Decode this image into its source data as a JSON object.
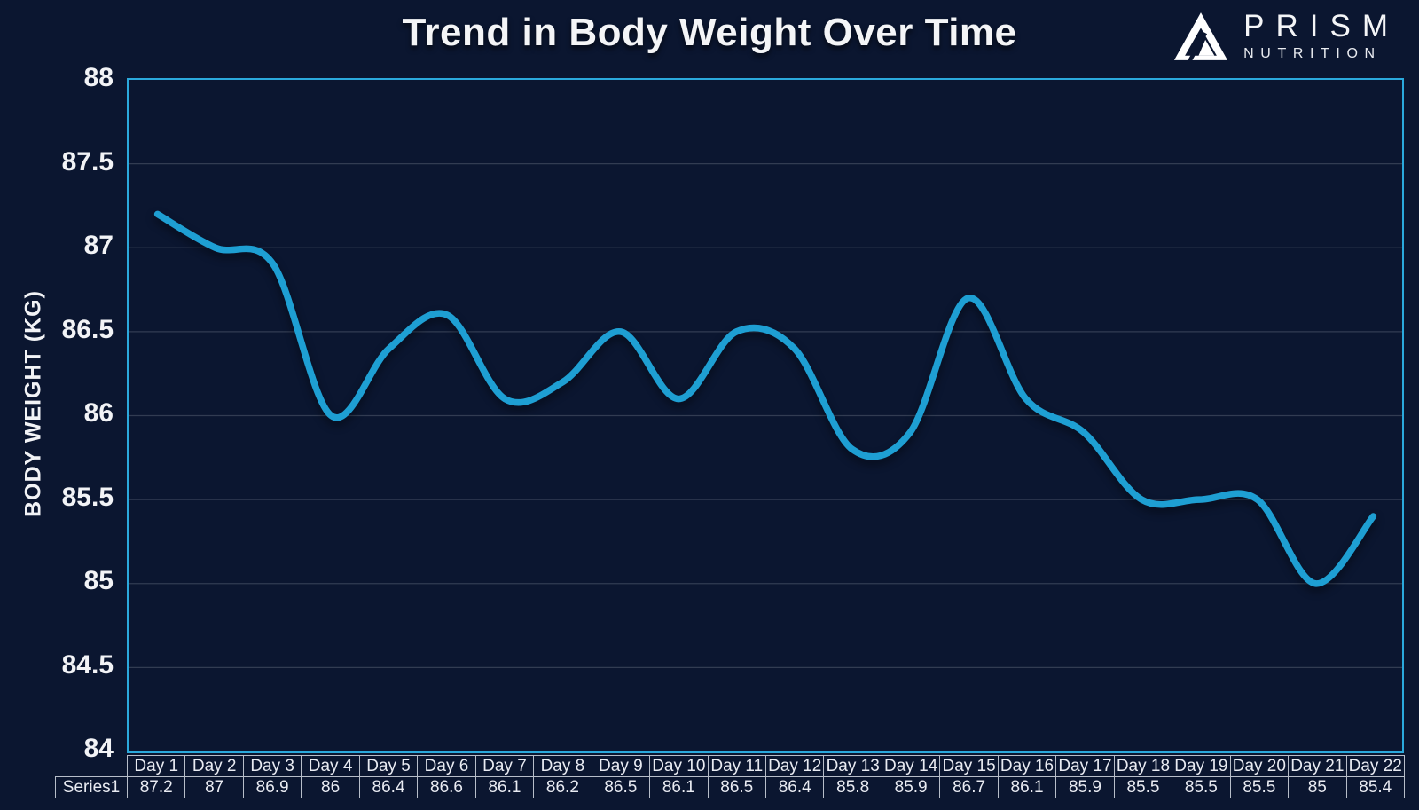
{
  "title": "Trend in Body Weight Over Time",
  "logo": {
    "brand": "PRISM",
    "sub": "NUTRITION"
  },
  "chart_data": {
    "type": "line",
    "title": "Trend in Body Weight Over Time",
    "xlabel": "",
    "ylabel": "BODY WEIGHT (KG)",
    "categories": [
      "Day 1",
      "Day 2",
      "Day 3",
      "Day 4",
      "Day 5",
      "Day 6",
      "Day 7",
      "Day 8",
      "Day 9",
      "Day 10",
      "Day 11",
      "Day 12",
      "Day 13",
      "Day 14",
      "Day 15",
      "Day 16",
      "Day 17",
      "Day 18",
      "Day 19",
      "Day 20",
      "Day 21",
      "Day 22"
    ],
    "series": [
      {
        "name": "Series1",
        "values": [
          87.2,
          87,
          86.9,
          86,
          86.4,
          86.6,
          86.1,
          86.2,
          86.5,
          86.1,
          86.5,
          86.4,
          85.8,
          85.9,
          86.7,
          86.1,
          85.9,
          85.5,
          85.5,
          85.5,
          85,
          85.4
        ]
      }
    ],
    "ylim": [
      84,
      88
    ],
    "yticks": [
      "88",
      "87.5",
      "87",
      "86.5",
      "86",
      "85.5",
      "85",
      "84.5",
      "84"
    ],
    "grid": "horizontal gridlines every 0.5 kg",
    "legend": "none (data table shown below x-axis)",
    "smooth": true,
    "line_color": "#1E9FD3",
    "plot_border_color": "#2BA9DC",
    "gridline_color": "#323C52",
    "background_color": "#0B1630",
    "table_border_color": "#B7BDC9"
  }
}
